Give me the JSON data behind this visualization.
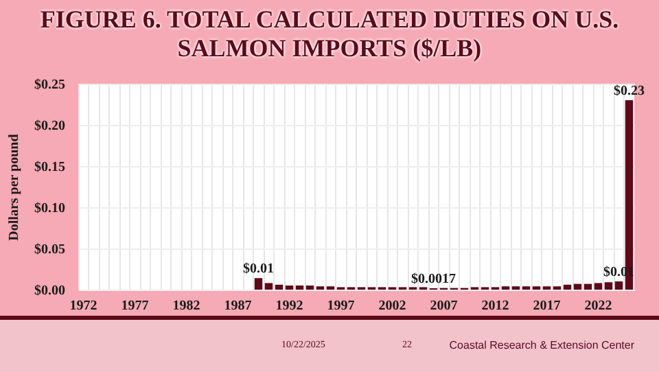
{
  "chart_data": {
    "type": "bar",
    "title": "FIGURE 6. TOTAL CALCULATED DUTIES ON U.S. SALMON IMPORTS ($/LB)",
    "ylabel": "Dollars per pound",
    "categories": [
      "1972",
      null,
      null,
      null,
      null,
      "1977",
      null,
      null,
      null,
      null,
      "1982",
      null,
      null,
      null,
      null,
      "1987",
      null,
      null,
      null,
      null,
      "1992",
      null,
      null,
      null,
      null,
      "1997",
      null,
      null,
      null,
      null,
      "2002",
      null,
      null,
      null,
      null,
      "2007",
      null,
      null,
      null,
      null,
      "2012",
      null,
      null,
      null,
      null,
      "2017",
      null,
      null,
      null,
      null,
      "2022",
      null,
      null,
      null
    ],
    "values": [
      null,
      null,
      null,
      null,
      null,
      null,
      null,
      null,
      null,
      null,
      null,
      null,
      null,
      null,
      null,
      null,
      null,
      0.014,
      0.008,
      0.006,
      0.005,
      0.005,
      0.005,
      0.004,
      0.004,
      0.003,
      0.003,
      0.003,
      0.003,
      0.003,
      0.003,
      0.003,
      0.003,
      0.003,
      0.0017,
      0.002,
      0.002,
      0.002,
      0.003,
      0.003,
      0.003,
      0.004,
      0.004,
      0.004,
      0.004,
      0.004,
      0.004,
      0.006,
      0.007,
      0.007,
      0.008,
      0.009,
      0.01,
      0.23
    ],
    "value_labels": [
      null,
      null,
      null,
      null,
      null,
      null,
      null,
      null,
      null,
      null,
      null,
      null,
      null,
      null,
      null,
      null,
      null,
      "$0.01",
      null,
      null,
      null,
      null,
      null,
      null,
      null,
      null,
      null,
      null,
      null,
      null,
      null,
      null,
      null,
      null,
      "$0.0017",
      null,
      null,
      null,
      null,
      null,
      null,
      null,
      null,
      null,
      null,
      null,
      null,
      null,
      null,
      null,
      null,
      null,
      "$0.01",
      "$0.23"
    ],
    "color": "#5c0a1a",
    "ylim": [
      0,
      0.25
    ],
    "yticks": [
      {
        "value": 0,
        "label": "$0.00"
      },
      {
        "value": 0.05,
        "label": "$0.05"
      },
      {
        "value": 0.1,
        "label": "$0.10"
      },
      {
        "value": 0.15,
        "label": "$0.15"
      },
      {
        "value": 0.2,
        "label": "$0.20"
      },
      {
        "value": 0.25,
        "label": "$0.25"
      }
    ],
    "grid": true,
    "annotations": [
      "10/22/2025",
      "22",
      "Coastal Research & Extension Center"
    ]
  }
}
